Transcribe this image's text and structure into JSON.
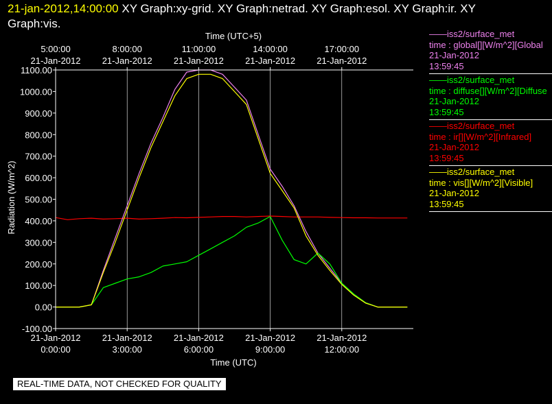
{
  "header": {
    "datetime": "21-jan-2012,14:00:00",
    "graphs_line1": "  XY Graph:xy-grid.  XY Graph:netrad.  XY Graph:esol.  XY Graph:ir.  XY",
    "graphs_line2": "Graph:vis."
  },
  "legend": [
    {
      "source": "——iss2/surface_met",
      "field": "time : global[][W/m^2][Global",
      "date": "21-Jan-2012",
      "time": "13:59:45",
      "color": "#ee82ee"
    },
    {
      "source": "——iss2/surface_met",
      "field": "time : diffuse[][W/m^2][Diffuse",
      "date": "21-Jan-2012",
      "time": "13:59:45",
      "color": "#00ff00"
    },
    {
      "source": "——iss2/surface_met",
      "field": "time : ir[][W/m^2][Infrared]",
      "date": "21-Jan-2012",
      "time": "13:59:45",
      "color": "#ff0000"
    },
    {
      "source": "——iss2/surface_met",
      "field": "time : vis[][W/m^2][Visible]",
      "date": "21-Jan-2012",
      "time": "13:59:45",
      "color": "#ffff00"
    }
  ],
  "disclaimer": "REAL-TIME DATA, NOT CHECKED FOR QUALITY",
  "chart_data": {
    "type": "line",
    "xlabel": "Time (UTC)",
    "x2label": "Time (UTC+5)",
    "ylabel": "Radiation (W/m^2)",
    "xlim_hours": [
      0,
      15
    ],
    "ylim": [
      -100,
      1100
    ],
    "grid": true,
    "legend_placement": "right",
    "bottom_ticks": [
      {
        "hour": 0,
        "date": "21-Jan-2012",
        "time": "0:00:00"
      },
      {
        "hour": 3,
        "date": "21-Jan-2012",
        "time": "3:00:00"
      },
      {
        "hour": 6,
        "date": "21-Jan-2012",
        "time": "6:00:00"
      },
      {
        "hour": 9,
        "date": "21-Jan-2012",
        "time": "9:00:00"
      },
      {
        "hour": 12,
        "date": "21-Jan-2012",
        "time": "12:00:00"
      }
    ],
    "top_ticks": [
      {
        "hour": 0,
        "time": "5:00:00",
        "date": "21-Jan-2012"
      },
      {
        "hour": 3,
        "time": "8:00:00",
        "date": "21-Jan-2012"
      },
      {
        "hour": 6,
        "time": "11:00:00",
        "date": "21-Jan-2012"
      },
      {
        "hour": 9,
        "time": "14:00:00",
        "date": "21-Jan-2012"
      },
      {
        "hour": 12,
        "time": "17:00:00",
        "date": "21-Jan-2012"
      }
    ],
    "y_ticks": [
      -100,
      0,
      100,
      200,
      300,
      400,
      500,
      600,
      700,
      800,
      900,
      1000,
      1100
    ],
    "y_tick_labels": [
      "-100.00",
      "0.00",
      "100.00",
      "200.00",
      "300.00",
      "400.00",
      "500.00",
      "600.00",
      "700.00",
      "800.00",
      "900.00",
      "1000.00",
      "1100.00"
    ],
    "x_hours": [
      0,
      0.5,
      1,
      1.5,
      2,
      2.5,
      3,
      3.5,
      4,
      4.5,
      5,
      5.5,
      6,
      6.5,
      7,
      7.5,
      8,
      8.5,
      9,
      9.5,
      10,
      10.5,
      11,
      11.5,
      12,
      12.5,
      13,
      13.5,
      14,
      14.5,
      14.75
    ],
    "series": [
      {
        "name": "global",
        "color": "#ee82ee",
        "values": [
          0,
          0,
          0,
          10,
          170,
          320,
          470,
          620,
          760,
          880,
          1010,
          1090,
          1100,
          1100,
          1080,
          1020,
          960,
          800,
          640,
          560,
          470,
          350,
          250,
          180,
          110,
          60,
          20,
          0,
          0,
          0,
          0
        ]
      },
      {
        "name": "diffuse",
        "color": "#00ff00",
        "values": [
          0,
          0,
          0,
          10,
          90,
          110,
          130,
          140,
          160,
          190,
          200,
          210,
          240,
          270,
          300,
          330,
          370,
          390,
          420,
          310,
          220,
          200,
          250,
          200,
          110,
          60,
          20,
          0,
          0,
          0,
          0
        ]
      },
      {
        "name": "ir",
        "color": "#ff0000",
        "values": [
          415,
          405,
          410,
          412,
          408,
          410,
          412,
          408,
          410,
          412,
          415,
          414,
          416,
          418,
          420,
          420,
          418,
          420,
          422,
          420,
          418,
          418,
          418,
          416,
          415,
          414,
          414,
          413,
          413,
          413,
          413
        ]
      },
      {
        "name": "vis",
        "color": "#ffff00",
        "values": [
          0,
          0,
          0,
          10,
          160,
          300,
          450,
          600,
          740,
          860,
          980,
          1060,
          1080,
          1080,
          1060,
          1000,
          940,
          780,
          620,
          540,
          460,
          330,
          240,
          170,
          105,
          55,
          18,
          0,
          0,
          0,
          0
        ]
      }
    ]
  }
}
